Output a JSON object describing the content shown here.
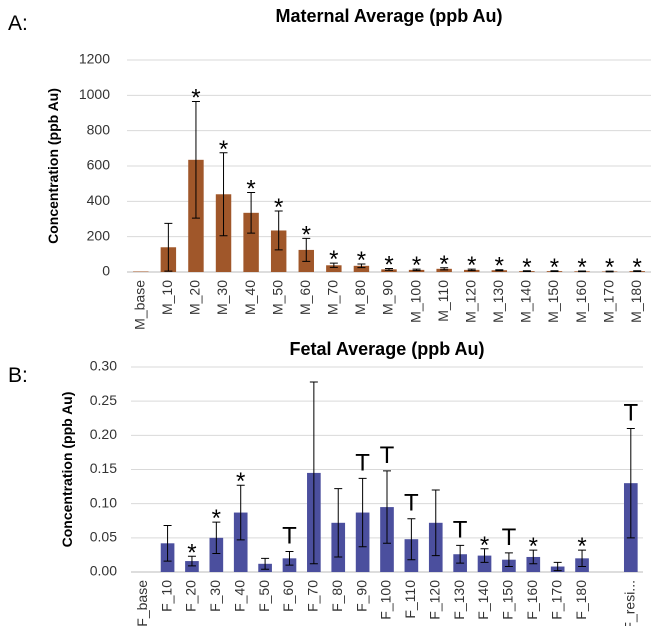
{
  "chart_data": [
    {
      "type": "bar",
      "panel": "A:",
      "title": "Maternal Average (ppb Au)",
      "y_label": "Concentration (ppb Au)",
      "categories": [
        "M_base",
        "M_10",
        "M_20",
        "M_30",
        "M_40",
        "M_50",
        "M_60",
        "M_70",
        "M_80",
        "M_90",
        "M_100",
        "M_110",
        "M_120",
        "M_130",
        "M_140",
        "M_150",
        "M_160",
        "M_170",
        "M_180"
      ],
      "values": [
        3,
        140,
        635,
        440,
        335,
        235,
        125,
        38,
        35,
        15,
        12,
        18,
        12,
        10,
        5,
        5,
        4,
        3,
        5
      ],
      "errors": [
        null,
        135,
        330,
        235,
        115,
        110,
        65,
        12,
        10,
        5,
        4,
        6,
        4,
        3,
        2,
        2,
        2,
        2,
        2
      ],
      "annotations": [
        null,
        null,
        "*",
        "*",
        "*",
        "*",
        "*",
        "*",
        "*",
        "*",
        "*",
        "*",
        "*",
        "*",
        "*",
        "*",
        "*",
        "*",
        "*"
      ],
      "color": "#a0572a",
      "ylim": [
        0,
        1200
      ],
      "yticks": [
        0,
        200,
        400,
        600,
        800,
        1000,
        1200
      ],
      "grid": true
    },
    {
      "type": "bar",
      "panel": "B:",
      "title": "Fetal Average (ppb Au)",
      "y_label": "Concentration (ppb Au)",
      "categories": [
        "F_base",
        "F_10",
        "F_20",
        "F_30",
        "F_40",
        "F_50",
        "F_60",
        "F_70",
        "F_80",
        "F_90",
        "F_100",
        "F_110",
        "F_120",
        "F_130",
        "F_140",
        "F_150",
        "F_160",
        "F_170",
        "F_180",
        null,
        "F_resi..."
      ],
      "values": [
        0,
        0.042,
        0.016,
        0.05,
        0.087,
        0.012,
        0.02,
        0.145,
        0.072,
        0.087,
        0.095,
        0.048,
        0.072,
        0.026,
        0.024,
        0.018,
        0.022,
        0.008,
        0.02,
        null,
        0.13
      ],
      "errors": [
        null,
        0.026,
        0.007,
        0.023,
        0.04,
        0.008,
        0.01,
        0.133,
        0.05,
        0.05,
        0.053,
        0.03,
        0.048,
        0.013,
        0.01,
        0.01,
        0.01,
        0.006,
        0.012,
        null,
        0.08
      ],
      "annotations": [
        null,
        null,
        "*",
        "*",
        "*",
        null,
        "T",
        null,
        null,
        "T",
        "T",
        "T",
        null,
        "T",
        "*",
        "T",
        "*",
        null,
        "*",
        null,
        "T"
      ],
      "color": "#4b4f9e",
      "ylim": [
        0,
        0.3
      ],
      "yticks": [
        {
          "value": 0,
          "label": "0.00"
        },
        {
          "value": 0.05,
          "label": "0.05"
        },
        {
          "value": 0.1,
          "label": "0.10"
        },
        {
          "value": 0.15,
          "label": "0.15"
        },
        {
          "value": 0.2,
          "label": "0.20"
        },
        {
          "value": 0.25,
          "label": "0.25"
        },
        {
          "value": 0.3,
          "label": "0.30"
        }
      ],
      "grid": true
    }
  ]
}
